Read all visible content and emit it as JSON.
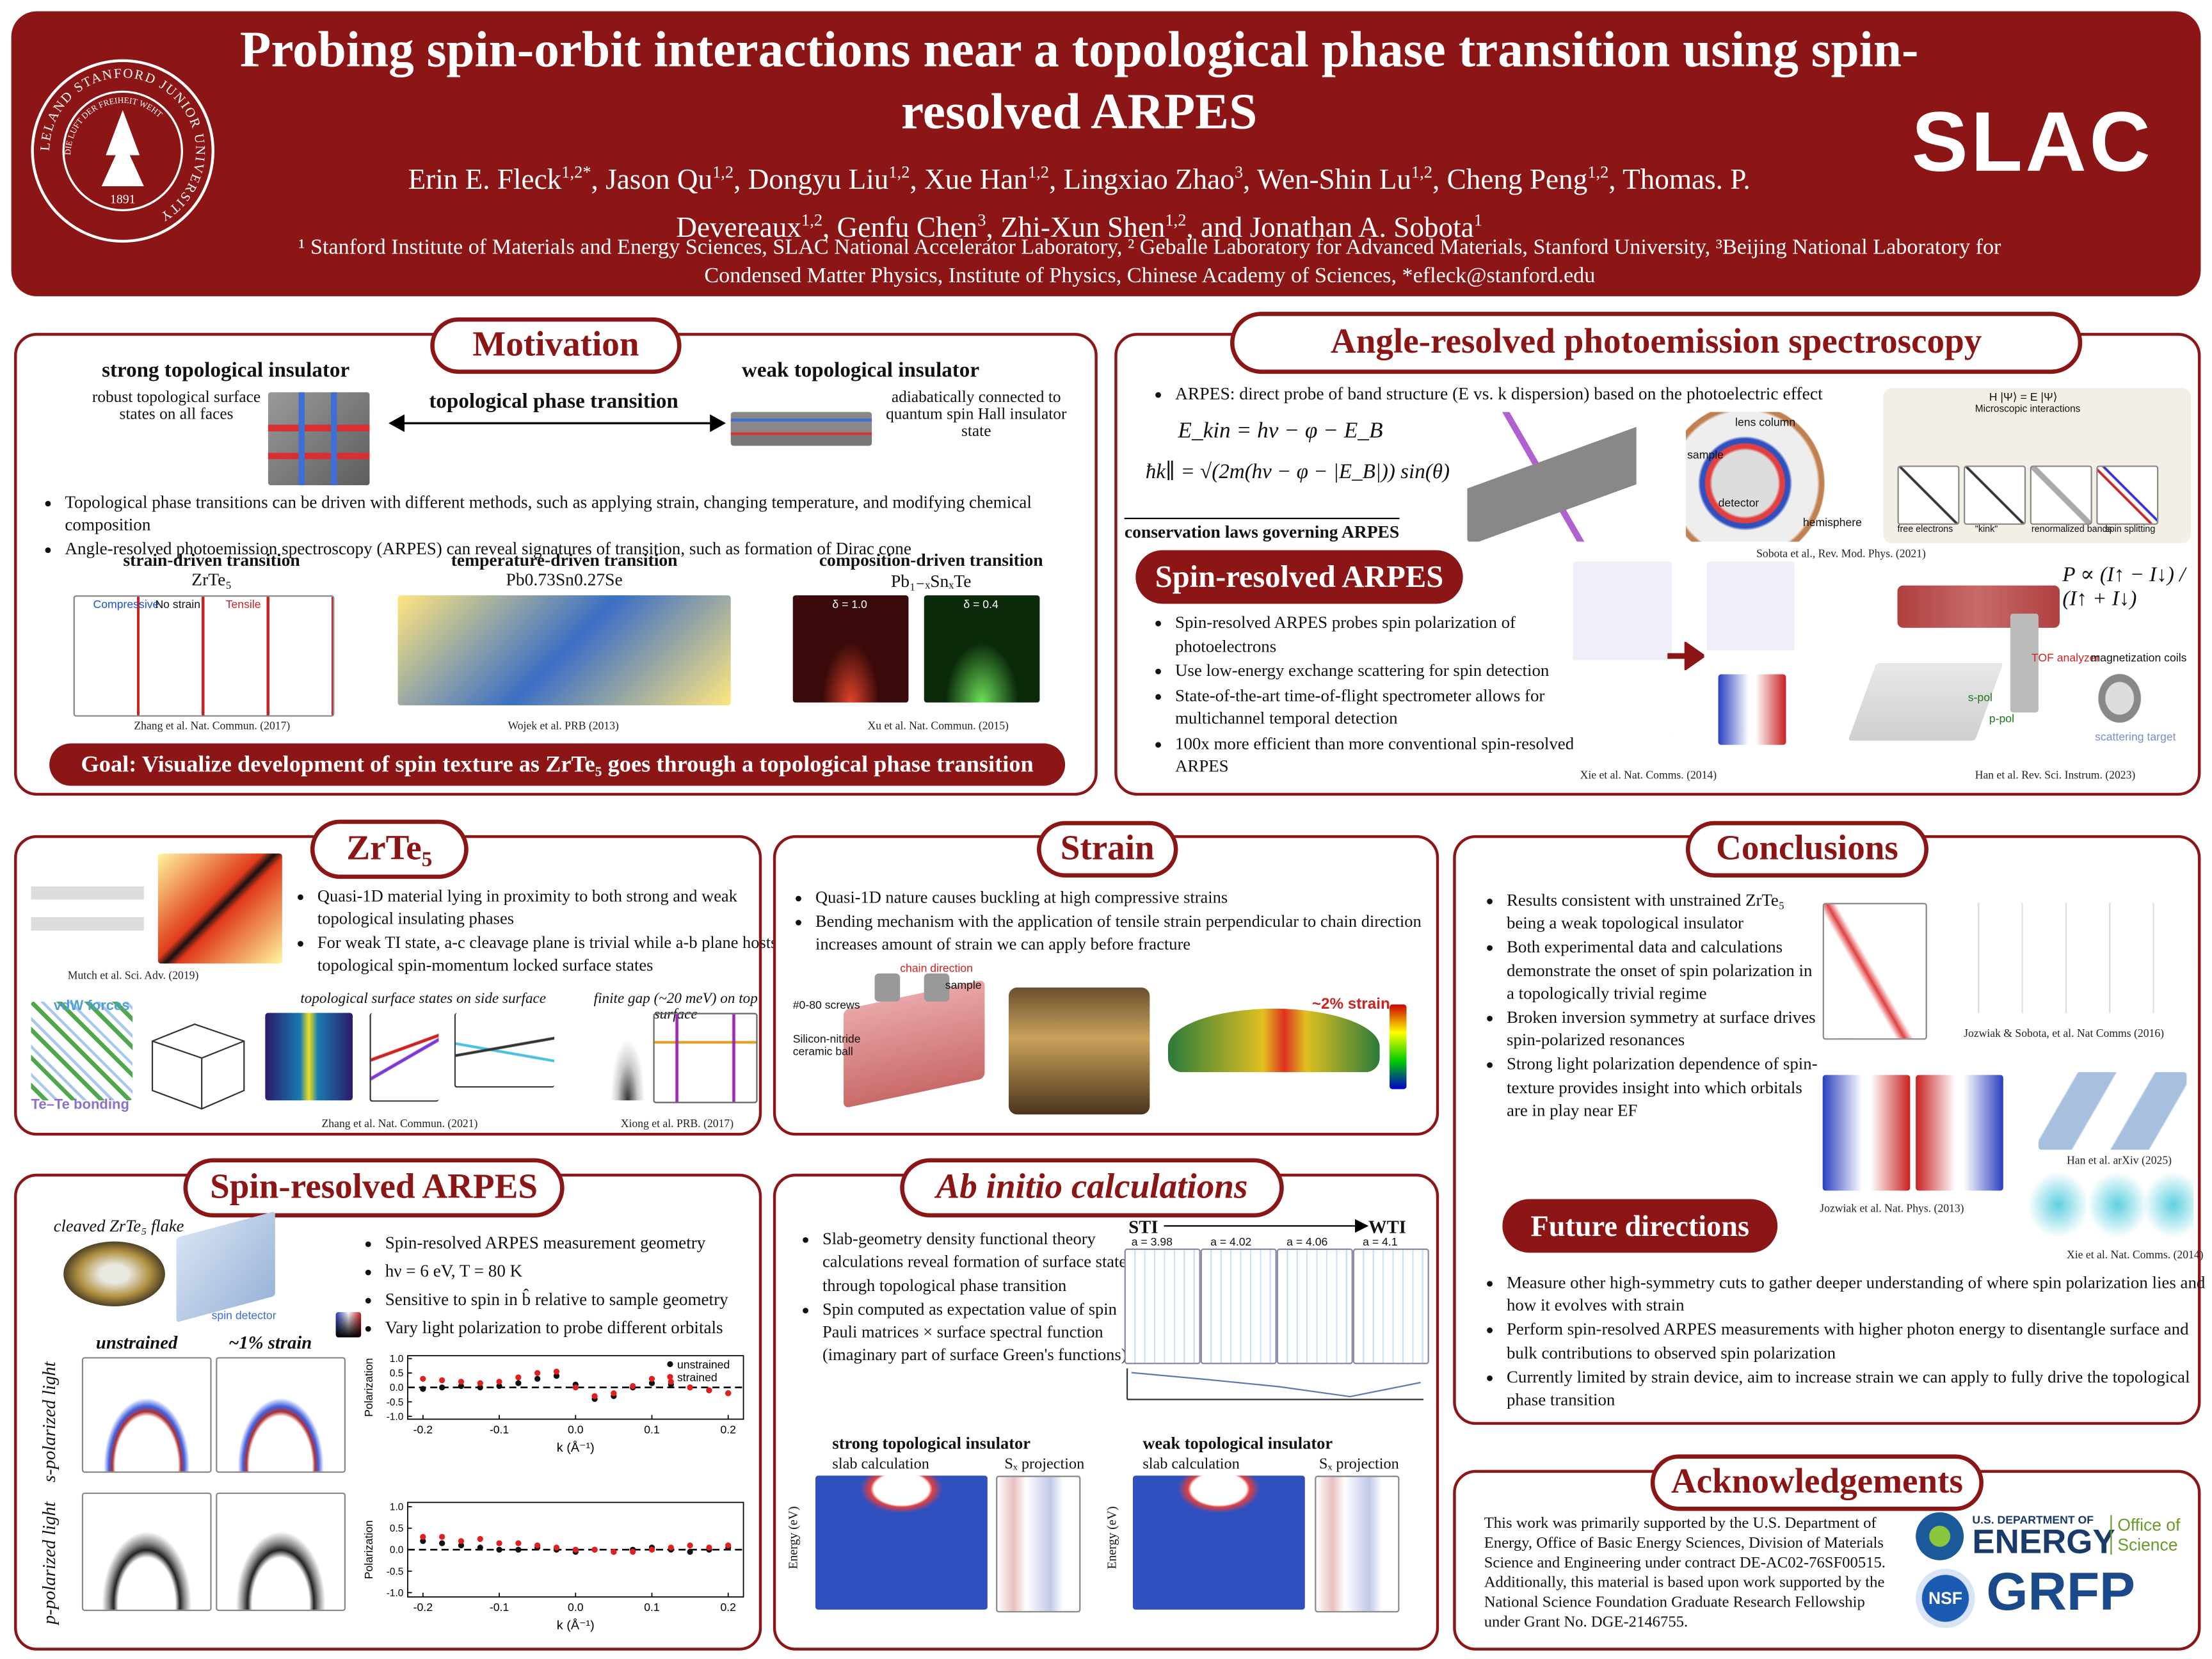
{
  "header": {
    "seal": {
      "ring": "LELAND STANFORD JUNIOR UNIVERSITY",
      "motto": "DIE LUFT DER FREIHEIT WEHT",
      "year": "1891"
    },
    "title": "Probing spin-orbit interactions near a topological phase transition using spin-resolved ARPES",
    "authors": [
      {
        "name": "Erin E. Fleck",
        "affiliation": "1,2*"
      },
      {
        "name": ", Jason Qu",
        "affiliation": "1,2"
      },
      {
        "name": ", Dongyu Liu",
        "affiliation": "1,2"
      },
      {
        "name": ", Xue Han",
        "affiliation": "1,2"
      },
      {
        "name": ", Lingxiao Zhao",
        "affiliation": "3"
      },
      {
        "name": ", Wen-Shin Lu",
        "affiliation": "1,2"
      },
      {
        "name": ", Cheng Peng",
        "affiliation": "1,2"
      },
      {
        "name": ", Thomas. P. Devereaux",
        "affiliation": "1,2"
      },
      {
        "name": ", Genfu Chen",
        "affiliation": "3"
      },
      {
        "name": ", Zhi-Xun Shen",
        "affiliation": "1,2"
      },
      {
        "name": ", and Jonathan A. Sobota",
        "affiliation": "1"
      }
    ],
    "affiliations": "¹ Stanford Institute of Materials and Energy Sciences, SLAC National Accelerator Laboratory, ² Geballe Laboratory for Advanced Materials, Stanford University, ³Beijing National Laboratory for Condensed Matter Physics, Institute of Physics, Chinese Academy of Sciences, *efleck@stanford.edu",
    "logo": "SLAC"
  },
  "motivation": {
    "title": "Motivation",
    "strong": {
      "title": "strong topological insulator",
      "text": "robust topological surface states on all faces"
    },
    "transition": "topological phase transition",
    "weak": {
      "title": "weak topological insulator",
      "text": "adiabatically connected to quantum spin Hall insulator state"
    },
    "bullets": [
      "Topological phase transitions can be driven with different methods, such as applying strain, changing temperature, and modifying chemical composition",
      "Angle-resolved photoemission spectroscopy (ARPES) can reveal signatures of transition, such as formation of Dirac cone"
    ],
    "figures": [
      {
        "title": "strain-driven transition",
        "material": "ZrTe₅",
        "caption": "Zhang et al. Nat. Commun. (2017)",
        "labels": [
          "Compressive",
          "No strain",
          "Tensile"
        ]
      },
      {
        "title": "temperature-driven transition",
        "material": "Pb0.73Sn0.27Se",
        "caption": "Wojek et al. PRB (2013)"
      },
      {
        "title": "composition-driven transition",
        "material": "Pb₁₋ₓSnₓTe",
        "caption": "Xu et al. Nat. Commun. (2015)",
        "labels": [
          "δ = 1.0",
          "δ = 0.4"
        ]
      }
    ],
    "goal": "Goal: Visualize development of spin texture as ZrTe₅ goes through a topological phase transition"
  },
  "arpes": {
    "title": "Angle-resolved photoemission spectroscopy",
    "bullet": "ARPES: direct probe of band structure (E vs. k dispersion) based on the photoelectric effect",
    "equations": [
      "E_kin = hν − φ − E_B",
      "ħk∥ = √(2m(hν − φ − |E_B|)) sin(θ)"
    ],
    "conservation": "conservation laws governing ARPES",
    "figure_labels": [
      "lens column",
      "sample",
      "detector",
      "hemisphere",
      "H |Ψ⟩ = E |Ψ⟩",
      "Microscopic interactions",
      "free electrons",
      "\"kink\"",
      "renormalized bands",
      "spin splitting"
    ],
    "caption_sobota": "Sobota et al., Rev. Mod. Phys. (2021)",
    "spin": {
      "title": "Spin-resolved ARPES",
      "bullets": [
        "Spin-resolved ARPES probes spin polarization of photoelectrons",
        "Use low-energy exchange scattering for spin detection",
        "State-of-the-art time-of-flight spectrometer allows for multichannel temporal detection",
        "100x more efficient than more conventional spin-resolved ARPES"
      ],
      "formula": "P ∝ (I↑ − I↓) / (I↑ + I↓)",
      "figure_labels": [
        "TOF analyzer",
        "magnetization coils",
        "s-pol",
        "p-pol",
        "scattering target"
      ],
      "caption_xie": "Xie et al. Nat. Comms. (2014)",
      "caption_han": "Han et al. Rev. Sci. Instrum. (2023)"
    }
  },
  "zrte5": {
    "title": "ZrTe₅",
    "bullets": [
      "Quasi-1D material lying in proximity to both strong and weak topological insulating phases",
      "For weak TI state, a-c cleavage plane is trivial while a-b plane hosts topological spin-momentum locked surface states"
    ],
    "caption_mutch": "Mutch et al. Sci. Adv. (2019)",
    "labels": [
      "vdW forces",
      "Te–Te bonding"
    ],
    "figure_titles": [
      "topological surface states on side surface",
      "finite gap (~20 meV) on top surface"
    ],
    "caption_zhang": "Zhang et al. Nat. Commun. (2021)",
    "caption_xiong": "Xiong et al. PRB. (2017)"
  },
  "strain": {
    "title": "Strain",
    "bullets": [
      "Quasi-1D nature causes buckling at high compressive strains",
      "Bending mechanism with the application of tensile strain perpendicular to chain direction increases amount of strain we can apply before fracture"
    ],
    "labels": [
      "chain direction",
      "sample",
      "#0-80 screws",
      "Silicon-nitride ceramic ball",
      "~2% strain"
    ]
  },
  "conclusions": {
    "title": "Conclusions",
    "bullets": [
      "Results consistent with unstrained ZrTe₅ being a weak topological insulator",
      "Both experimental data and calculations demonstrate the onset of spin polarization in a topologically trivial regime",
      "Broken inversion symmetry at surface drives spin-polarized resonances",
      "Strong light polarization dependence of spin-texture provides insight into which orbitals are in play near EF"
    ],
    "captions": [
      "Jozwiak & Sobota, et al. Nat Comms (2016)",
      "Jozwiak et al. Nat. Phys. (2013)",
      "Han et al. arXiv (2025)",
      "Xie et al. Nat. Comms. (2014)"
    ],
    "future": {
      "title": "Future directions",
      "bullets": [
        "Measure other high-symmetry cuts to gather deeper understanding of where spin polarization lies and how it evolves with strain",
        "Perform spin-resolved ARPES measurements with higher photon energy to disentangle surface and bulk contributions to observed spin polarization",
        "Currently limited by strain device, aim to increase strain we can apply to fully drive the topological phase transition"
      ]
    }
  },
  "spin_arpes": {
    "title": "Spin-resolved ARPES",
    "flake": "cleaved ZrTe₅ flake",
    "detector": "spin detector",
    "bullets": [
      "Spin-resolved ARPES measurement geometry",
      "hν = 6 eV, T = 80 K",
      "Sensitive to spin in b̂ relative to sample geometry",
      "Vary light polarization to probe different orbitals"
    ],
    "columns": [
      "unstrained",
      "~1% strain"
    ],
    "rows": [
      "s-polarized light",
      "p-polarized light"
    ],
    "plots": [
      {
        "type": "scatter",
        "x_label": "k (Å⁻¹)",
        "y_label": "Polarization",
        "x": [
          -0.2,
          -0.175,
          -0.15,
          -0.125,
          -0.1,
          -0.075,
          -0.05,
          -0.025,
          0,
          0.025,
          0.05,
          0.075,
          0.1,
          0.125,
          0.15,
          0.175,
          0.2
        ],
        "xlim": [
          -0.22,
          0.22
        ],
        "xticks": [
          -0.2,
          -0.1,
          {
            "value": 0,
            "label": "0.0"
          },
          0.1,
          0.2
        ],
        "ylim": [
          -1.1,
          1.1
        ],
        "yticks": [
          {
            "value": 1,
            "label": "1.0"
          },
          0.5,
          {
            "value": 0,
            "label": "0.0"
          },
          -0.5,
          {
            "value": -1,
            "label": "-1.0"
          }
        ],
        "legend": "upper right",
        "series": [
          {
            "name": "unstrained",
            "color": "#111111",
            "values": [
              -0.05,
              0,
              0.05,
              0,
              0.05,
              0.15,
              0.3,
              0.4,
              0.1,
              -0.4,
              -0.3,
              0,
              0.15,
              0.1,
              0,
              -0.1,
              -0.2
            ]
          },
          {
            "name": "strained",
            "color": "#e02020",
            "values": [
              0.3,
              0.25,
              0.2,
              0.15,
              0.2,
              0.35,
              0.5,
              0.55,
              0,
              -0.3,
              -0.2,
              0.05,
              0.3,
              0.2,
              0,
              -0.1,
              -0.2
            ]
          }
        ]
      },
      {
        "type": "scatter",
        "x_label": "k (Å⁻¹)",
        "y_label": "Polarization",
        "x": [
          -0.2,
          -0.175,
          -0.15,
          -0.125,
          -0.1,
          -0.075,
          -0.05,
          -0.025,
          0,
          0.025,
          0.05,
          0.075,
          0.1,
          0.125,
          0.15,
          0.175,
          0.2
        ],
        "xlim": [
          -0.22,
          0.22
        ],
        "xticks": [
          -0.2,
          -0.1,
          {
            "value": 0,
            "label": "0.0"
          },
          0.1,
          0.2
        ],
        "ylim": [
          -1.1,
          1.1
        ],
        "yticks": [
          {
            "value": 1,
            "label": "1.0"
          },
          0.5,
          {
            "value": 0,
            "label": "0.0"
          },
          -0.5,
          {
            "value": -1,
            "label": "-1.0"
          }
        ],
        "series": [
          {
            "color": "#111111",
            "values": [
              0.2,
              0.15,
              0.1,
              0.05,
              0,
              0,
              0.05,
              0,
              -0.05,
              0,
              -0.05,
              0,
              0.05,
              0,
              -0.05,
              0,
              0.05
            ]
          },
          {
            "color": "#e02020",
            "values": [
              0.3,
              0.3,
              0.2,
              0.25,
              0.15,
              0.15,
              0.1,
              0.05,
              0,
              0,
              -0.05,
              -0.05,
              0,
              0.05,
              0.1,
              0.05,
              0.1
            ]
          }
        ]
      }
    ]
  },
  "ab_initio": {
    "title": "Ab initio calculations",
    "bullets": [
      "Slab-geometry density functional theory calculations reveal formation of surface state through topological phase transition",
      "Spin computed as expectation value of spin Pauli matrices × surface spectral function (imaginary part of surface Green's functions)"
    ],
    "phase_labels": [
      "STI",
      "WTI"
    ],
    "lattice": [
      "a = 3.98",
      "a = 4.02",
      "a = 4.06",
      "a = 4.1"
    ],
    "panels": [
      {
        "title": "strong topological insulator",
        "left": "slab calculation",
        "right": "Sₓ projection"
      },
      {
        "title": "weak topological insulator",
        "left": "slab calculation",
        "right": "Sₓ projection"
      }
    ],
    "y_label": "Energy (eV)"
  },
  "acknowledgements": {
    "title": "Acknowledgements",
    "text": "This work was primarily supported by the U.S. Department of Energy, Office of Basic Energy Sciences, Division of Materials Science and Engineering under contract DE-AC02-76SF00515. Additionally, this material is based upon work supported by the National Science Foundation Graduate Research Fellowship under Grant No. DGE-2146755.",
    "logos": [
      "U.S. DEPARTMENT OF",
      "ENERGY",
      "Office of Science",
      "NSF",
      "GRFP"
    ]
  }
}
